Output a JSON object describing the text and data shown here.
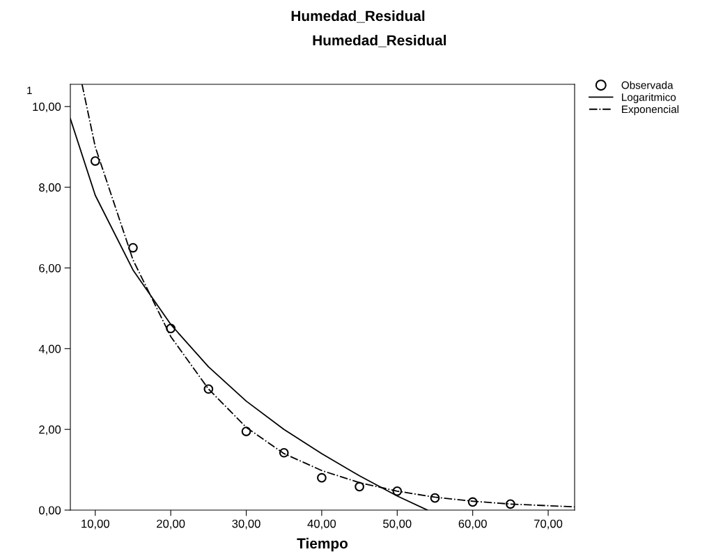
{
  "chart_data": {
    "type": "scatter",
    "title": "Humedad_Residual",
    "subtitle": "Humedad_Residual",
    "xlabel": "Tiempo",
    "annotations": [
      "1"
    ],
    "series": [
      {
        "name": "Observada",
        "color": "#000000",
        "marker": "circle",
        "x": [
          10,
          15,
          20,
          25,
          30,
          35,
          40,
          45,
          50,
          55,
          60,
          65
        ],
        "values": [
          8.65,
          6.5,
          4.5,
          3.0,
          1.95,
          1.42,
          0.8,
          0.58,
          0.47,
          0.3,
          0.2,
          0.15
        ]
      },
      {
        "name": "Logaritmico",
        "type": "line",
        "color": "#000000",
        "line_style": "solid",
        "x": [
          6.7,
          10,
          15,
          20,
          25,
          30,
          35,
          40,
          45,
          50,
          54
        ],
        "values": [
          9.7,
          7.8,
          5.95,
          4.6,
          3.55,
          2.7,
          2.0,
          1.4,
          0.85,
          0.35,
          0.0
        ]
      },
      {
        "name": "Exponencial",
        "type": "line",
        "color": "#000000",
        "line_style": "dashdot",
        "x": [
          8.25,
          10,
          15,
          20,
          25,
          30,
          35,
          40,
          45,
          50,
          55,
          60,
          65,
          73.5
        ],
        "values": [
          10.55,
          9.0,
          6.2,
          4.3,
          3.0,
          2.05,
          1.4,
          0.98,
          0.68,
          0.47,
          0.32,
          0.22,
          0.15,
          0.08
        ]
      }
    ],
    "xlim": [
      6.7,
      73.5
    ],
    "ylim": [
      0,
      10.55
    ],
    "xticks": [
      {
        "value": 10,
        "label": "10,00"
      },
      {
        "value": 20,
        "label": "20,00"
      },
      {
        "value": 30,
        "label": "30,00"
      },
      {
        "value": 40,
        "label": "40,00"
      },
      {
        "value": 50,
        "label": "50,00"
      },
      {
        "value": 60,
        "label": "60,00"
      },
      {
        "value": 70,
        "label": "70,00"
      }
    ],
    "yticks": [
      {
        "value": 0,
        "label": "0,00"
      },
      {
        "value": 2,
        "label": "2,00"
      },
      {
        "value": 4,
        "label": "4,00"
      },
      {
        "value": 6,
        "label": "6,00"
      },
      {
        "value": 8,
        "label": "8,00"
      },
      {
        "value": 10,
        "label": "10,00"
      }
    ],
    "grid": false,
    "legend": "top right"
  }
}
